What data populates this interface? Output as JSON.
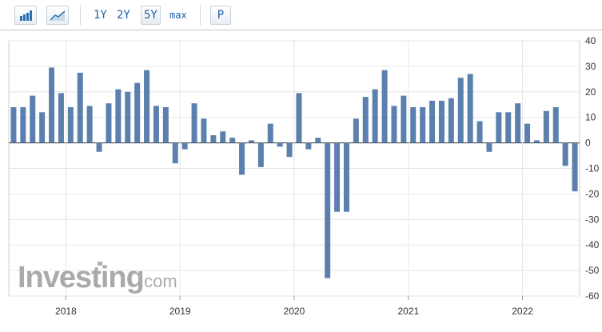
{
  "toolbar": {
    "bar_chart_button": "bar-chart-icon",
    "line_chart_button": "line-chart-icon",
    "ranges": [
      "1Y",
      "2Y",
      "5Y",
      "max"
    ],
    "active_range": "5Y",
    "p_label": "P"
  },
  "watermark": {
    "text": "Investing",
    "suffix": ".com",
    "color": "#aaaaaa"
  },
  "chart_data": {
    "type": "bar",
    "title": "",
    "xlabel": "",
    "ylabel": "",
    "ylim": [
      -60,
      40
    ],
    "yticks": [
      40,
      30,
      20,
      10,
      0,
      -10,
      -20,
      -30,
      -40,
      -50,
      -60
    ],
    "year_labels": [
      "2018",
      "2019",
      "2020",
      "2021",
      "2022"
    ],
    "grid": true,
    "bar_color": "#5b80ad",
    "values": [
      14,
      14,
      18.5,
      12,
      29.5,
      19.5,
      14,
      27.5,
      14.5,
      -3.5,
      15.5,
      21,
      20,
      23.5,
      28.5,
      14.5,
      14,
      -8,
      -2.5,
      15.5,
      9.5,
      3,
      4.5,
      2,
      -12.5,
      1,
      -9.5,
      7.5,
      -1.5,
      -5.5,
      19.5,
      -2.5,
      2,
      -53,
      -27,
      -27,
      9.5,
      18,
      21,
      28.5,
      14.5,
      18.5,
      14,
      14,
      16.5,
      16.5,
      17.5,
      25.5,
      27,
      8.5,
      -3.5,
      12,
      12,
      15.5,
      7.5,
      1,
      12.5,
      14,
      -9,
      -19
    ]
  }
}
